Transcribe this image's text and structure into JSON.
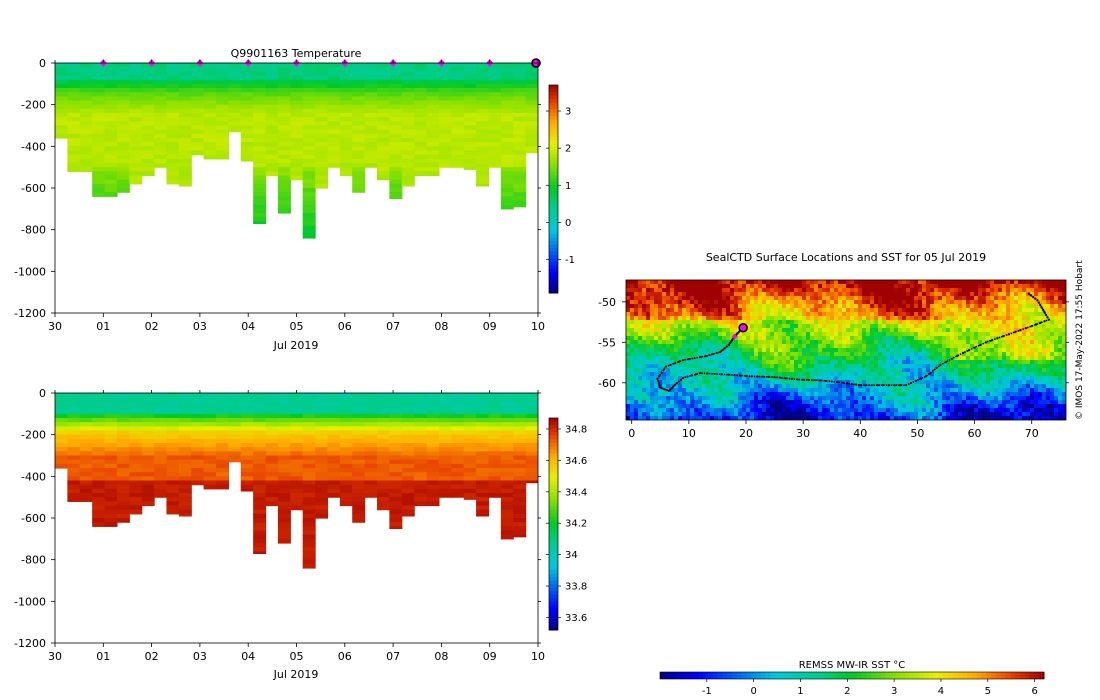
{
  "chart_data": [
    {
      "id": "temperature",
      "type": "heatmap",
      "title": "Q9901163  Temperature",
      "xlabel": "Jul 2019",
      "ylim": [
        -1200,
        0
      ],
      "yticks": [
        "0",
        "-200",
        "-400",
        "-600",
        "-800",
        "-1000",
        "-1200"
      ],
      "x_days_range": [
        0,
        10
      ],
      "xticks": [
        "30",
        "01",
        "02",
        "03",
        "04",
        "05",
        "06",
        "07",
        "08",
        "09",
        "10"
      ],
      "profile_bottoms": [
        360,
        520,
        520,
        640,
        640,
        620,
        580,
        540,
        500,
        580,
        590,
        440,
        460,
        460,
        330,
        470,
        770,
        540,
        720,
        560,
        840,
        600,
        500,
        540,
        620,
        500,
        560,
        650,
        590,
        540,
        540,
        500,
        500,
        510,
        590,
        500,
        700,
        690,
        430
      ],
      "colorbar": {
        "range": [
          -1.9,
          3.7
        ],
        "ticks": [
          "3",
          "2",
          "1",
          "0",
          "-1"
        ],
        "tick_values": [
          3,
          2,
          1,
          0,
          -1
        ]
      },
      "layers": [
        {
          "depth_to": 60,
          "value": 0.3
        },
        {
          "depth_to": 120,
          "value": 0.6
        },
        {
          "depth_to": 160,
          "value": 1.2
        },
        {
          "depth_to": 220,
          "value": 1.6
        },
        {
          "depth_to": 1200,
          "value": 1.8
        }
      ],
      "float_markers_days": [
        1,
        2,
        3,
        4,
        5,
        6,
        7,
        8,
        9
      ],
      "current_marker_day": 10
    },
    {
      "id": "salinity",
      "type": "heatmap",
      "title": "",
      "xlabel": "Jul 2019",
      "ylim": [
        -1200,
        0
      ],
      "yticks": [
        "0",
        "-200",
        "-400",
        "-600",
        "-800",
        "-1000",
        "-1200"
      ],
      "x_days_range": [
        0,
        10
      ],
      "xticks": [
        "30",
        "01",
        "02",
        "03",
        "04",
        "05",
        "06",
        "07",
        "08",
        "09",
        "10"
      ],
      "colorbar": {
        "range": [
          33.52,
          34.87
        ],
        "ticks": [
          "34.8",
          "34.6",
          "34.4",
          "34.2",
          "34",
          "33.8",
          "33.6"
        ],
        "tick_values": [
          34.8,
          34.6,
          34.4,
          34.2,
          34.0,
          33.8,
          33.6
        ]
      },
      "layers": [
        {
          "depth_to": 100,
          "value": 34.05
        },
        {
          "depth_to": 170,
          "value": 34.4
        },
        {
          "depth_to": 260,
          "value": 34.58
        },
        {
          "depth_to": 380,
          "value": 34.72
        },
        {
          "depth_to": 1200,
          "value": 34.83
        }
      ]
    },
    {
      "id": "sst-map",
      "type": "heatmap",
      "title": "SealCTD Surface Locations and SST for 05 Jul 2019",
      "xlim": [
        -1,
        76
      ],
      "ylim": [
        -64.6,
        -47.3
      ],
      "xticks": [
        0,
        10,
        20,
        30,
        40,
        50,
        60,
        70
      ],
      "yticks": [
        -50,
        -55,
        -60
      ],
      "xtick_labels": [
        "0",
        "10",
        "20",
        "30",
        "40",
        "50",
        "60",
        "70"
      ],
      "ytick_labels": [
        "-50",
        "-55",
        "-60"
      ],
      "track": [
        [
          69.5,
          -49
        ],
        [
          71,
          -49.8
        ],
        [
          72,
          -51
        ],
        [
          73,
          -52.2
        ],
        [
          70,
          -53
        ],
        [
          66,
          -54
        ],
        [
          62,
          -55
        ],
        [
          58,
          -56.3
        ],
        [
          54,
          -57.8
        ],
        [
          51.5,
          -59.2
        ],
        [
          48,
          -60.3
        ],
        [
          44,
          -60.3
        ],
        [
          40,
          -60.3
        ],
        [
          37,
          -60
        ],
        [
          33,
          -59.7
        ],
        [
          29,
          -59.6
        ],
        [
          25,
          -59.3
        ],
        [
          21,
          -59.2
        ],
        [
          17,
          -59
        ],
        [
          12,
          -58.8
        ],
        [
          9,
          -59.4
        ],
        [
          7.5,
          -60.3
        ],
        [
          6.5,
          -61
        ],
        [
          5,
          -60.6
        ],
        [
          4.5,
          -59.5
        ],
        [
          6,
          -58
        ],
        [
          9,
          -57.2
        ],
        [
          13,
          -56.7
        ],
        [
          15.5,
          -56.2
        ],
        [
          17,
          -55.3
        ],
        [
          17.8,
          -54.5
        ],
        [
          18.5,
          -53.9
        ],
        [
          19.5,
          -53.2
        ]
      ],
      "current_position": [
        19.5,
        -53.2
      ],
      "recent_marker": [
        18,
        -54.3
      ],
      "colorbar": {
        "label": "REMSS MW-IR SST °C",
        "range": [
          -2,
          6.2
        ],
        "ticks": [
          "-1",
          "0",
          "1",
          "2",
          "3",
          "4",
          "5",
          "6"
        ],
        "tick_values": [
          -1,
          0,
          1,
          2,
          3,
          4,
          5,
          6
        ]
      }
    }
  ],
  "credit": "© IMOS 17-May-2022 17:55 Hobart",
  "colors": {
    "float_marker": "#ff00ff",
    "track": "#000000"
  }
}
